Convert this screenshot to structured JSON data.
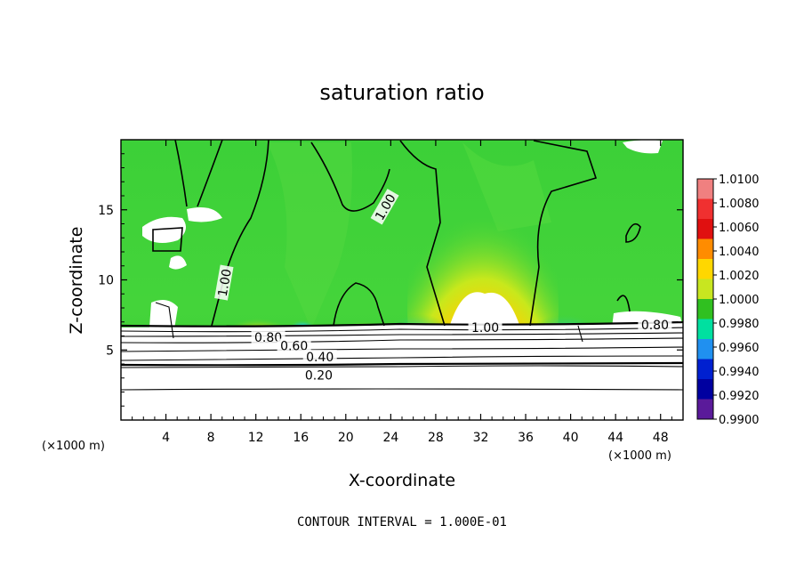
{
  "chart_data": {
    "type": "heatmap",
    "title": "saturation ratio",
    "xlabel": "X-coordinate",
    "ylabel": "Z-coordinate",
    "x_unit": "(×1000 m)",
    "x_unit_right": "(×1000 m)",
    "xlim": [
      0,
      50
    ],
    "ylim": [
      0,
      20
    ],
    "x_ticks": [
      4,
      8,
      12,
      16,
      20,
      24,
      28,
      32,
      36,
      40,
      44,
      48
    ],
    "y_ticks": [
      5,
      10,
      15
    ],
    "footer": "CONTOUR INTERVAL = 1.000E-01",
    "colorbar": {
      "labels": [
        "1.0100",
        "1.0080",
        "1.0060",
        "1.0040",
        "1.0020",
        "1.0000",
        "0.9980",
        "0.9960",
        "0.9940",
        "0.9920",
        "0.9900"
      ],
      "colors": [
        "#f08080",
        "#f03030",
        "#e01010",
        "#ff8c00",
        "#ffd700",
        "#c8e620",
        "#30c020",
        "#00e0a0",
        "#2090f0",
        "#0020d0",
        "#0000a0",
        "#5a1a9a"
      ]
    },
    "contour_labels": [
      {
        "text": "1.00",
        "x": 9.2,
        "y": 9.8,
        "angle": -80
      },
      {
        "text": "1.00",
        "x": 23.5,
        "y": 15.2,
        "angle": -60
      },
      {
        "text": "1.00",
        "x": 32.4,
        "y": 6.6,
        "angle": 0
      },
      {
        "text": "0.80",
        "x": 13.1,
        "y": 5.9,
        "angle": 0
      },
      {
        "text": "0.60",
        "x": 15.4,
        "y": 5.3,
        "angle": 0
      },
      {
        "text": "0.40",
        "x": 17.7,
        "y": 4.5,
        "angle": 0
      },
      {
        "text": "0.20",
        "x": 17.6,
        "y": 3.2,
        "angle": 0
      },
      {
        "text": "0.80",
        "x": 47.5,
        "y": 6.8,
        "angle": 0
      }
    ]
  }
}
